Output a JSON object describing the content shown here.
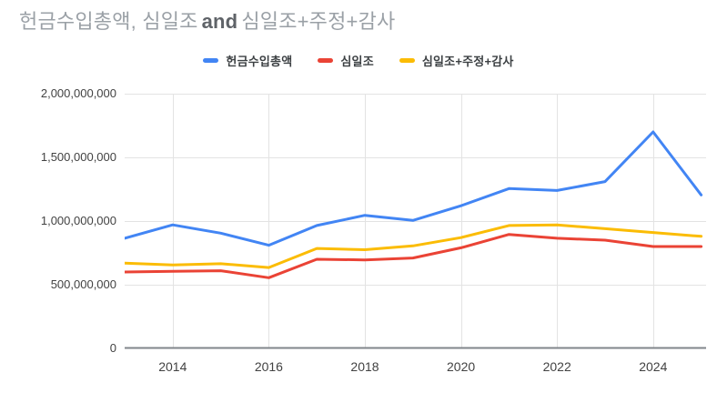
{
  "title": {
    "part1": "헌금수입총액, 심일조",
    "connector": "and",
    "part2": "심일조+주정+감사"
  },
  "legend": {
    "items": [
      {
        "label": "헌금수입총액",
        "color": "#4285F4"
      },
      {
        "label": "심일조",
        "color": "#EA4335"
      },
      {
        "label": "심일조+주정+감사",
        "color": "#FBBC04"
      }
    ]
  },
  "chart_data": {
    "type": "line",
    "title": "헌금수입총액, 심일조 and 심일조+주정+감사",
    "xlabel": "",
    "ylabel": "",
    "x": [
      2013,
      2014,
      2015,
      2016,
      2017,
      2018,
      2019,
      2020,
      2021,
      2022,
      2023,
      2024,
      2025
    ],
    "series": [
      {
        "name": "헌금수입총액",
        "color": "#4285F4",
        "values": [
          865000000,
          970000000,
          905000000,
          810000000,
          965000000,
          1045000000,
          1005000000,
          1120000000,
          1255000000,
          1240000000,
          1310000000,
          1700000000,
          1205000000
        ]
      },
      {
        "name": "심일조",
        "color": "#EA4335",
        "values": [
          600000000,
          605000000,
          610000000,
          555000000,
          700000000,
          695000000,
          710000000,
          790000000,
          895000000,
          865000000,
          850000000,
          800000000,
          800000000
        ]
      },
      {
        "name": "심일조+주정+감사",
        "color": "#FBBC04",
        "values": [
          670000000,
          655000000,
          665000000,
          635000000,
          785000000,
          775000000,
          805000000,
          870000000,
          965000000,
          970000000,
          940000000,
          910000000,
          880000000
        ]
      }
    ],
    "ylim": [
      0,
      2000000000
    ],
    "xlim": [
      2013,
      2025
    ],
    "y_ticks": {
      "values": [
        0,
        500000000,
        1000000000,
        1500000000,
        2000000000
      ],
      "labels": [
        "0",
        "500,000,000",
        "1,000,000,000",
        "1,500,000,000",
        "2,000,000,000"
      ]
    },
    "x_ticks": {
      "values": [
        2014,
        2016,
        2018,
        2020,
        2022,
        2024
      ],
      "labels": [
        "2014",
        "2016",
        "2018",
        "2020",
        "2022",
        "2024"
      ]
    },
    "grid": true,
    "legend_position": "top",
    "style": {
      "background": "#ffffff",
      "grid_color": "#e3e3e3",
      "axis_line_color": "#80868b",
      "tick_label_color": "#424242",
      "title_color": "#9aa0a6",
      "title_connector_color": "#5f6368",
      "line_width": 3
    }
  }
}
